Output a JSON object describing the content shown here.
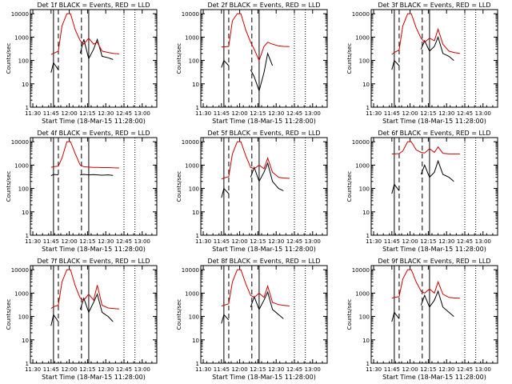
{
  "figure": {
    "title_template": "Det {n}f BLACK = Events, RED = LLD",
    "xlabel": "Start Time (18-Mar-15 11:28:00)",
    "ylabel": "Counts/sec",
    "x_ticks": [
      "11:30",
      "11:45",
      "12:00",
      "12:15",
      "12:30",
      "12:45",
      "13:00"
    ],
    "y_ticks": [
      "1",
      "10",
      "100",
      "1000",
      "10000"
    ],
    "colors": {
      "events": "#000000",
      "lld": "#cc0000",
      "axes": "#000000"
    }
  },
  "chart_data": [
    {
      "type": "line",
      "title": "Det 1f BLACK = Events, RED = LLD",
      "xlabel": "Start Time (18-Mar-15 11:28:00)",
      "ylabel": "Counts/sec",
      "ylog": true,
      "ylim": [
        1,
        10000
      ],
      "x": [
        "11:45",
        "11:47",
        "11:51",
        "11:54",
        "11:58",
        "12:01",
        "12:05",
        "12:09",
        "12:12",
        "12:16",
        "12:20",
        "12:23",
        "12:27",
        "12:32",
        "12:36",
        "12:41"
      ],
      "series": [
        {
          "name": "Events",
          "values": [
            30,
            80,
            40,
            null,
            null,
            null,
            null,
            200,
            800,
            120,
            300,
            800,
            150,
            130,
            110,
            null
          ]
        },
        {
          "name": "LLD",
          "values": [
            180,
            200,
            250,
            3000,
            10000,
            10000,
            2000,
            700,
            500,
            900,
            500,
            600,
            250,
            220,
            200,
            190
          ]
        }
      ]
    },
    {
      "type": "line",
      "title": "Det 2f BLACK = Events, RED = LLD",
      "xlabel": "Start Time (18-Mar-15 11:28:00)",
      "ylabel": "Counts/sec",
      "ylog": true,
      "ylim": [
        1,
        10000
      ],
      "x": [
        "11:45",
        "11:47",
        "11:51",
        "11:54",
        "11:58",
        "12:01",
        "12:05",
        "12:09",
        "12:12",
        "12:16",
        "12:20",
        "12:23",
        "12:27",
        "12:32",
        "12:36",
        "12:41"
      ],
      "series": [
        {
          "name": "Events",
          "values": [
            50,
            100,
            60,
            null,
            null,
            null,
            null,
            40,
            20,
            5,
            30,
            200,
            60,
            null,
            null,
            null
          ]
        },
        {
          "name": "LLD",
          "values": [
            380,
            380,
            400,
            5000,
            10000,
            10000,
            2000,
            600,
            300,
            100,
            400,
            600,
            500,
            420,
            400,
            390
          ]
        }
      ]
    },
    {
      "type": "line",
      "title": "Det 3f BLACK = Events, RED = LLD",
      "xlabel": "Start Time (18-Mar-15 11:28:00)",
      "ylabel": "Counts/sec",
      "ylog": true,
      "ylim": [
        1,
        10000
      ],
      "x": [
        "11:45",
        "11:47",
        "11:51",
        "11:54",
        "11:58",
        "12:01",
        "12:05",
        "12:09",
        "12:12",
        "12:16",
        "12:20",
        "12:23",
        "12:27",
        "12:32",
        "12:36",
        "12:41"
      ],
      "series": [
        {
          "name": "Events",
          "values": [
            40,
            100,
            60,
            null,
            null,
            null,
            null,
            300,
            700,
            250,
            400,
            1000,
            200,
            150,
            100,
            null
          ]
        },
        {
          "name": "LLD",
          "values": [
            180,
            220,
            280,
            3000,
            10000,
            10000,
            2500,
            900,
            600,
            900,
            700,
            2200,
            500,
            250,
            220,
            200
          ]
        }
      ]
    },
    {
      "type": "line",
      "title": "Det 4f BLACK = Events, RED = LLD",
      "xlabel": "Start Time (18-Mar-15 11:28:00)",
      "ylabel": "Counts/sec",
      "ylog": true,
      "ylim": [
        1,
        10000
      ],
      "x": [
        "11:45",
        "11:47",
        "11:51",
        "11:54",
        "11:58",
        "12:01",
        "12:05",
        "12:09",
        "12:12",
        "12:16",
        "12:20",
        "12:23",
        "12:27",
        "12:32",
        "12:36",
        "12:41"
      ],
      "series": [
        {
          "name": "Events",
          "values": [
            350,
            400,
            380,
            null,
            null,
            null,
            null,
            380,
            400,
            380,
            390,
            380,
            370,
            380,
            360,
            null
          ]
        },
        {
          "name": "LLD",
          "values": [
            800,
            850,
            900,
            2000,
            10000,
            10000,
            3000,
            1000,
            850,
            820,
            800,
            800,
            780,
            780,
            760,
            750
          ]
        }
      ]
    },
    {
      "type": "line",
      "title": "Det 5f BLACK = Events, RED = LLD",
      "xlabel": "Start Time (18-Mar-15 11:28:00)",
      "ylabel": "Counts/sec",
      "ylog": true,
      "ylim": [
        1,
        10000
      ],
      "x": [
        "11:45",
        "11:47",
        "11:51",
        "11:54",
        "11:58",
        "12:01",
        "12:05",
        "12:09",
        "12:12",
        "12:16",
        "12:20",
        "12:23",
        "12:27",
        "12:32",
        "12:36",
        "12:41"
      ],
      "series": [
        {
          "name": "Events",
          "values": [
            40,
            100,
            60,
            null,
            null,
            null,
            null,
            300,
            800,
            200,
            500,
            1200,
            200,
            100,
            80,
            null
          ]
        },
        {
          "name": "LLD",
          "values": [
            250,
            280,
            320,
            3000,
            10000,
            10000,
            2500,
            800,
            700,
            1000,
            700,
            2000,
            500,
            300,
            280,
            270
          ]
        }
      ]
    },
    {
      "type": "line",
      "title": "Det 6f BLACK = Events, RED = LLD",
      "xlabel": "Start Time (18-Mar-15 11:28:00)",
      "ylabel": "Counts/sec",
      "ylog": true,
      "ylim": [
        1,
        10000
      ],
      "x": [
        "11:45",
        "11:47",
        "11:51",
        "11:54",
        "11:58",
        "12:01",
        "12:05",
        "12:09",
        "12:12",
        "12:16",
        "12:20",
        "12:23",
        "12:27",
        "12:32",
        "12:36",
        "12:41"
      ],
      "series": [
        {
          "name": "Events",
          "values": [
            60,
            150,
            80,
            null,
            null,
            null,
            null,
            400,
            1000,
            300,
            500,
            1500,
            400,
            300,
            200,
            null
          ]
        },
        {
          "name": "LLD",
          "values": [
            3000,
            3000,
            3100,
            4000,
            10000,
            10000,
            4500,
            3500,
            3300,
            5000,
            3500,
            6000,
            3200,
            3000,
            3000,
            3000
          ]
        }
      ]
    },
    {
      "type": "line",
      "title": "Det 7f BLACK = Events, RED = LLD",
      "xlabel": "Start Time (18-Mar-15 11:28:00)",
      "ylabel": "Counts/sec",
      "ylog": true,
      "ylim": [
        1,
        10000
      ],
      "x": [
        "11:45",
        "11:47",
        "11:51",
        "11:54",
        "11:58",
        "12:01",
        "12:05",
        "12:09",
        "12:12",
        "12:16",
        "12:20",
        "12:23",
        "12:27",
        "12:32",
        "12:36",
        "12:41"
      ],
      "series": [
        {
          "name": "Events",
          "values": [
            40,
            120,
            60,
            null,
            null,
            null,
            null,
            200,
            600,
            150,
            400,
            900,
            150,
            100,
            60,
            null
          ]
        },
        {
          "name": "LLD",
          "values": [
            220,
            260,
            300,
            3000,
            10000,
            10000,
            2000,
            600,
            500,
            900,
            500,
            2200,
            300,
            230,
            220,
            210
          ]
        }
      ]
    },
    {
      "type": "line",
      "title": "Det 8f BLACK = Events, RED = LLD",
      "xlabel": "Start Time (18-Mar-15 11:28:00)",
      "ylabel": "Counts/sec",
      "ylog": true,
      "ylim": [
        1,
        10000
      ],
      "x": [
        "11:45",
        "11:47",
        "11:51",
        "11:54",
        "11:58",
        "12:01",
        "12:05",
        "12:09",
        "12:12",
        "12:16",
        "12:20",
        "12:23",
        "12:27",
        "12:32",
        "12:36",
        "12:41"
      ],
      "series": [
        {
          "name": "Events",
          "values": [
            50,
            120,
            70,
            null,
            null,
            null,
            null,
            250,
            700,
            200,
            500,
            1100,
            200,
            120,
            80,
            null
          ]
        },
        {
          "name": "LLD",
          "values": [
            280,
            300,
            350,
            3000,
            10000,
            10000,
            2500,
            800,
            650,
            1000,
            650,
            2000,
            400,
            320,
            300,
            280
          ]
        }
      ]
    },
    {
      "type": "line",
      "title": "Det 9f BLACK = Events, RED = LLD",
      "xlabel": "Start Time (18-Mar-15 11:28:00)",
      "ylabel": "Counts/sec",
      "ylog": true,
      "ylim": [
        1,
        10000
      ],
      "x": [
        "11:45",
        "11:47",
        "11:51",
        "11:54",
        "11:58",
        "12:01",
        "12:05",
        "12:09",
        "12:12",
        "12:16",
        "12:20",
        "12:23",
        "12:27",
        "12:32",
        "12:36",
        "12:41"
      ],
      "series": [
        {
          "name": "Events",
          "values": [
            60,
            150,
            80,
            null,
            null,
            null,
            null,
            300,
            800,
            250,
            500,
            1200,
            250,
            150,
            100,
            null
          ]
        },
        {
          "name": "LLD",
          "values": [
            600,
            650,
            700,
            4000,
            10000,
            10000,
            3000,
            1200,
            1000,
            1500,
            1000,
            3000,
            900,
            650,
            620,
            600
          ]
        }
      ]
    }
  ]
}
